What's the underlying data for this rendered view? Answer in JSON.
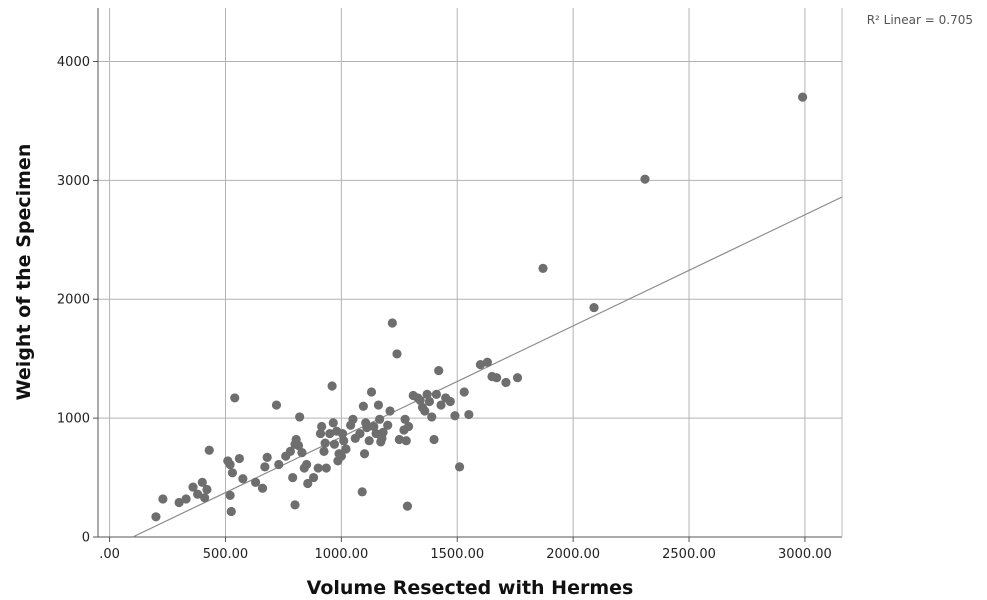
{
  "chart_data": {
    "type": "scatter",
    "xlabel": "Volume Resected with Hermes",
    "ylabel": "Weight of the Specimen",
    "xlim": [
      -50,
      3160
    ],
    "ylim": [
      0,
      4450
    ],
    "x_ticks": [
      0,
      500,
      1000,
      1500,
      2000,
      2500,
      3000
    ],
    "x_tick_labels": [
      ".00",
      "500.00",
      "1000.00",
      "1500.00",
      "2000.00",
      "2500.00",
      "3000.00"
    ],
    "y_ticks": [
      0,
      1000,
      2000,
      3000,
      4000
    ],
    "y_tick_labels": [
      "0",
      "1000",
      "2000",
      "3000",
      "4000"
    ],
    "grid": true,
    "fit_line": {
      "label": "R² Linear = 0.705",
      "x": [
        100,
        3160
      ],
      "y": [
        0,
        2860
      ]
    },
    "point_color": "#6e6e6e",
    "line_color": "#8a8a8a",
    "points": [
      [
        200,
        170
      ],
      [
        230,
        320
      ],
      [
        300,
        290
      ],
      [
        330,
        320
      ],
      [
        360,
        420
      ],
      [
        380,
        360
      ],
      [
        400,
        460
      ],
      [
        410,
        330
      ],
      [
        420,
        400
      ],
      [
        430,
        730
      ],
      [
        510,
        640
      ],
      [
        520,
        610
      ],
      [
        520,
        350
      ],
      [
        525,
        215
      ],
      [
        530,
        540
      ],
      [
        540,
        1170
      ],
      [
        560,
        660
      ],
      [
        575,
        490
      ],
      [
        630,
        460
      ],
      [
        660,
        410
      ],
      [
        670,
        590
      ],
      [
        680,
        670
      ],
      [
        720,
        1110
      ],
      [
        730,
        610
      ],
      [
        760,
        680
      ],
      [
        780,
        720
      ],
      [
        790,
        500
      ],
      [
        800,
        780
      ],
      [
        800,
        270
      ],
      [
        805,
        820
      ],
      [
        815,
        770
      ],
      [
        820,
        1010
      ],
      [
        830,
        710
      ],
      [
        840,
        580
      ],
      [
        850,
        610
      ],
      [
        855,
        450
      ],
      [
        880,
        500
      ],
      [
        900,
        580
      ],
      [
        910,
        870
      ],
      [
        915,
        930
      ],
      [
        925,
        720
      ],
      [
        930,
        790
      ],
      [
        935,
        580
      ],
      [
        950,
        870
      ],
      [
        960,
        1270
      ],
      [
        965,
        960
      ],
      [
        970,
        780
      ],
      [
        980,
        890
      ],
      [
        985,
        640
      ],
      [
        990,
        700
      ],
      [
        1000,
        680
      ],
      [
        1005,
        870
      ],
      [
        1010,
        810
      ],
      [
        1020,
        740
      ],
      [
        1040,
        940
      ],
      [
        1050,
        990
      ],
      [
        1060,
        830
      ],
      [
        1080,
        870
      ],
      [
        1090,
        380
      ],
      [
        1095,
        1100
      ],
      [
        1100,
        700
      ],
      [
        1105,
        960
      ],
      [
        1110,
        920
      ],
      [
        1120,
        810
      ],
      [
        1130,
        1220
      ],
      [
        1140,
        930
      ],
      [
        1150,
        870
      ],
      [
        1160,
        1110
      ],
      [
        1165,
        990
      ],
      [
        1170,
        800
      ],
      [
        1175,
        830
      ],
      [
        1180,
        880
      ],
      [
        1200,
        940
      ],
      [
        1210,
        1060
      ],
      [
        1220,
        1800
      ],
      [
        1240,
        1540
      ],
      [
        1250,
        820
      ],
      [
        1270,
        900
      ],
      [
        1275,
        990
      ],
      [
        1280,
        810
      ],
      [
        1285,
        260
      ],
      [
        1290,
        930
      ],
      [
        1310,
        1190
      ],
      [
        1330,
        1170
      ],
      [
        1340,
        1150
      ],
      [
        1350,
        1090
      ],
      [
        1360,
        1060
      ],
      [
        1370,
        1200
      ],
      [
        1380,
        1140
      ],
      [
        1390,
        1010
      ],
      [
        1400,
        820
      ],
      [
        1410,
        1200
      ],
      [
        1420,
        1400
      ],
      [
        1430,
        1110
      ],
      [
        1450,
        1170
      ],
      [
        1470,
        1140
      ],
      [
        1490,
        1020
      ],
      [
        1510,
        590
      ],
      [
        1530,
        1220
      ],
      [
        1550,
        1030
      ],
      [
        1600,
        1450
      ],
      [
        1630,
        1470
      ],
      [
        1650,
        1350
      ],
      [
        1670,
        1340
      ],
      [
        1710,
        1300
      ],
      [
        1760,
        1340
      ],
      [
        1870,
        2260
      ],
      [
        2090,
        1930
      ],
      [
        2310,
        3010
      ],
      [
        2990,
        3700
      ]
    ]
  }
}
